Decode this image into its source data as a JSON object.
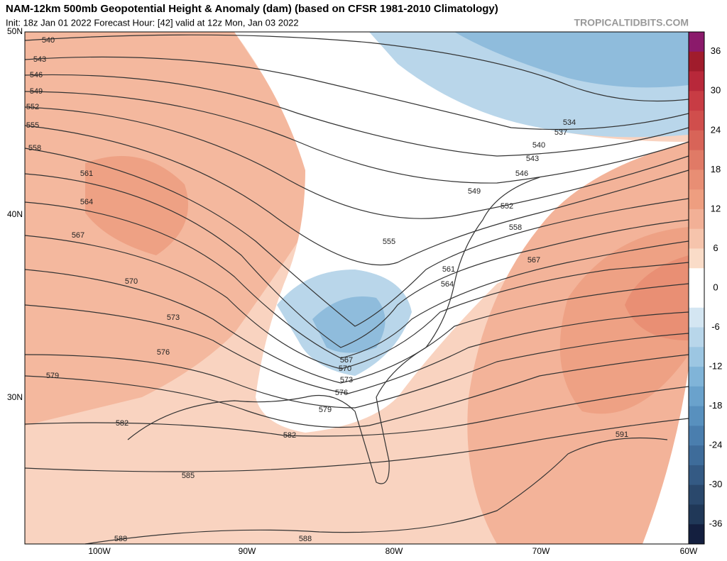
{
  "title": "NAM-12km 500mb Geopotential Height & Anomaly (dam) (based on CFSR 1981-2010 Climatology)",
  "subtitle": "Init: 18z Jan 01 2022   Forecast Hour: [42]   valid at 12z Mon, Jan 03 2022",
  "watermark": "TROPICALTIDBITS.COM",
  "latitude_labels": [
    "50N",
    "40N",
    "30N"
  ],
  "longitude_labels": [
    "100W",
    "90W",
    "80W",
    "70W",
    "60W"
  ],
  "colorbar": {
    "ticks": [
      36,
      30,
      24,
      18,
      12,
      6,
      0,
      -6,
      -12,
      -18,
      -24,
      -30,
      -36
    ],
    "colors": [
      "#8b1a6b",
      "#a01c2c",
      "#b8283a",
      "#c83c44",
      "#d04e4c",
      "#d86458",
      "#e07a66",
      "#e88e74",
      "#ee9e80",
      "#f2b096",
      "#f6c4ac",
      "#fadcc8",
      "#ffffff",
      "#ffffff",
      "#d4e6f2",
      "#b8d6ea",
      "#9cc6e2",
      "#80b4d8",
      "#6aa2cc",
      "#5890be",
      "#4a7eae",
      "#3e6c9a",
      "#345a84",
      "#2a486c",
      "#203858",
      "#141f3f"
    ]
  },
  "contour_labels": [
    540,
    543,
    546,
    549,
    552,
    555,
    558,
    561,
    564,
    567,
    570,
    573,
    576,
    579,
    582,
    585,
    588,
    588,
    582,
    579,
    576,
    573,
    570,
    567,
    555,
    561,
    564,
    567,
    558,
    552,
    549,
    546,
    543,
    540,
    537,
    534,
    591
  ]
}
